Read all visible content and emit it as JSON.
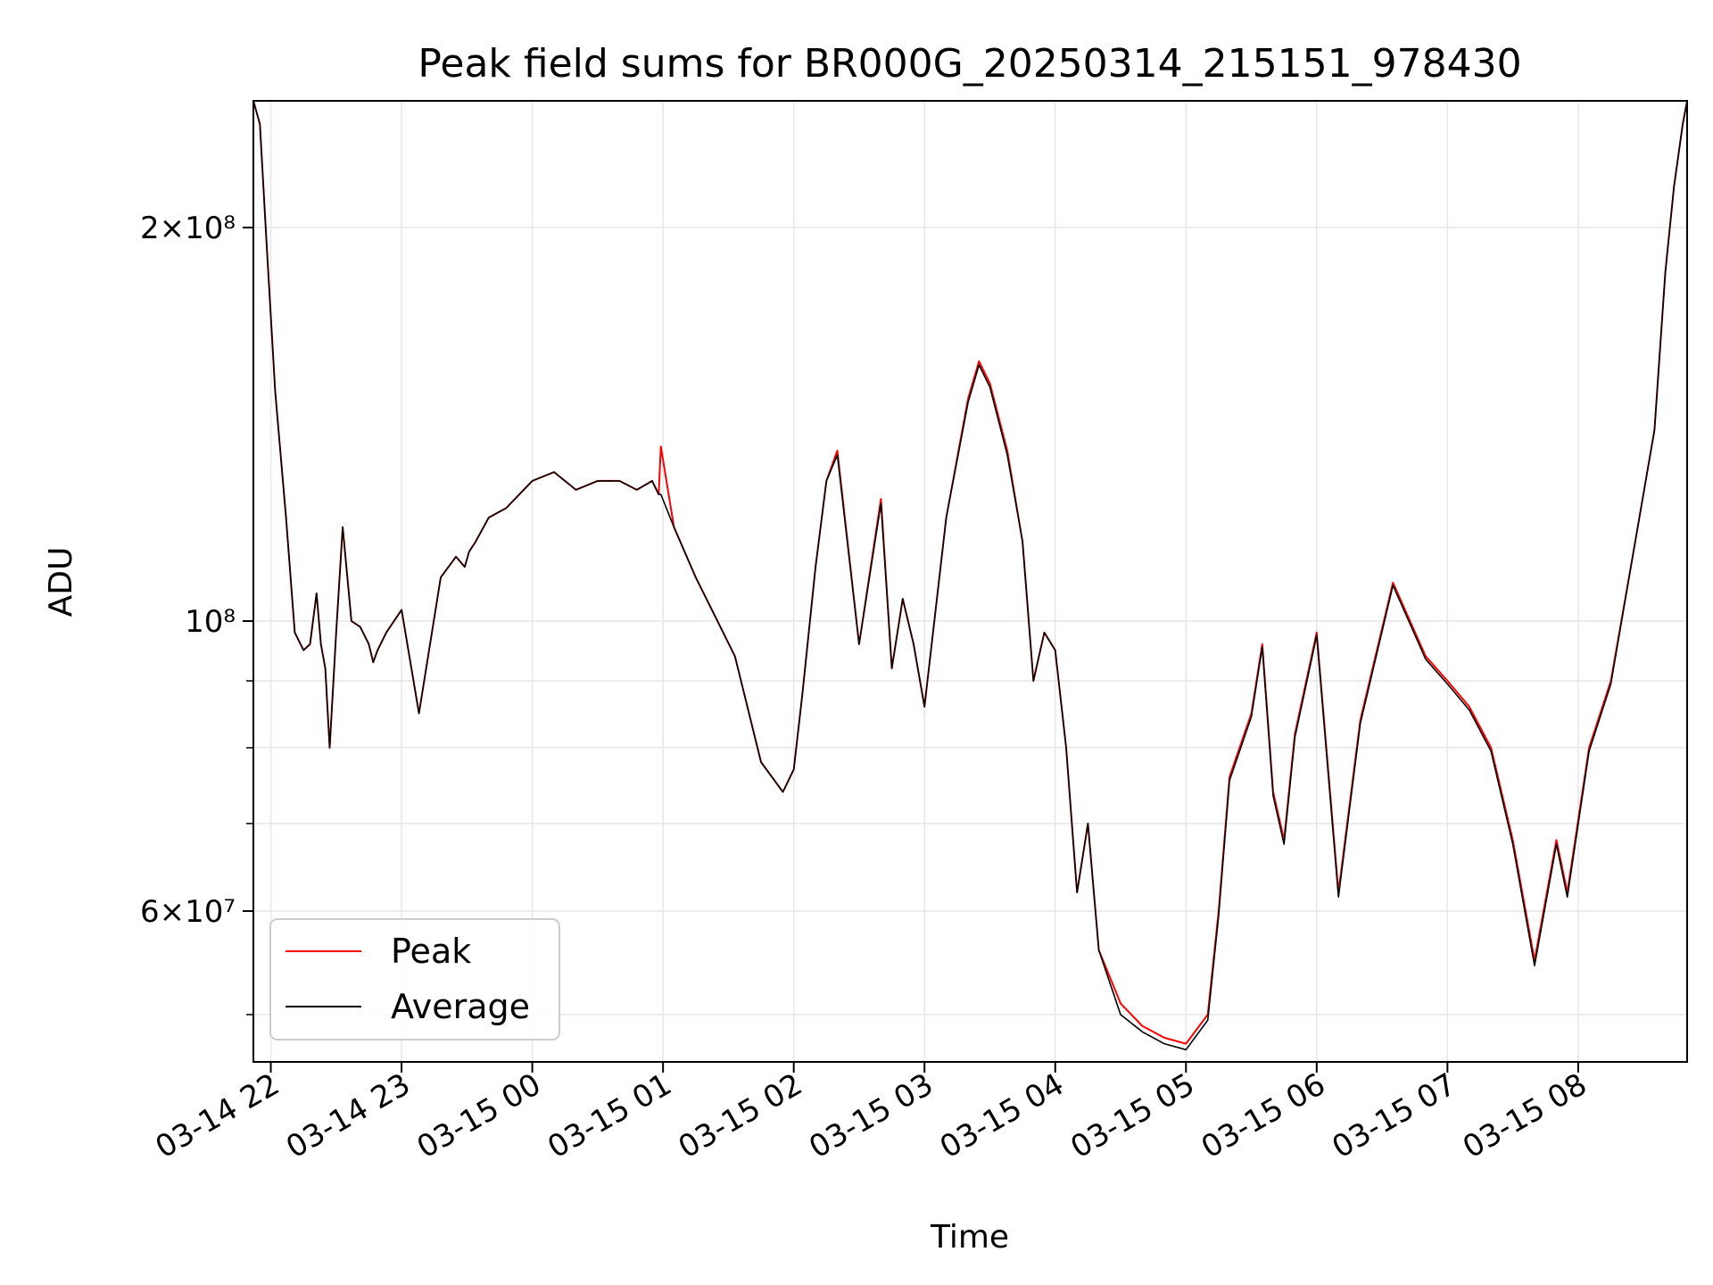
{
  "chart_data": {
    "type": "line",
    "title": "Peak field sums for BR000G_20250314_215151_978430",
    "xlabel": "Time",
    "ylabel": "ADU",
    "y_scale": "log",
    "ylim": [
      46000000,
      250000000
    ],
    "xlim": [
      "2025-03-14T21:52",
      "2025-03-15T08:50"
    ],
    "grid": true,
    "legend_position": "lower-left",
    "x_ticks": [
      "03-14 22",
      "03-14 23",
      "03-15 00",
      "03-15 01",
      "03-15 02",
      "03-15 03",
      "03-15 04",
      "03-15 05",
      "03-15 06",
      "03-15 07",
      "03-15 08"
    ],
    "y_ticks": [
      {
        "value": 200000000,
        "label": "2×10⁸"
      },
      {
        "value": 100000000,
        "label": "10⁸"
      },
      {
        "value": 60000000,
        "label": "6×10⁷"
      }
    ],
    "series": [
      {
        "name": "Peak",
        "color": "#ff0000",
        "x": [
          "2025-03-14T21:52",
          "2025-03-14T21:55",
          "2025-03-14T21:58",
          "2025-03-14T22:02",
          "2025-03-14T22:07",
          "2025-03-14T22:11",
          "2025-03-14T22:15",
          "2025-03-14T22:18",
          "2025-03-14T22:21",
          "2025-03-14T22:23",
          "2025-03-14T22:25",
          "2025-03-14T22:27",
          "2025-03-14T22:30",
          "2025-03-14T22:33",
          "2025-03-14T22:37",
          "2025-03-14T22:41",
          "2025-03-14T22:45",
          "2025-03-14T22:47",
          "2025-03-14T22:49",
          "2025-03-14T22:53",
          "2025-03-14T23:00",
          "2025-03-14T23:08",
          "2025-03-14T23:18",
          "2025-03-14T23:25",
          "2025-03-14T23:29",
          "2025-03-14T23:31",
          "2025-03-14T23:34",
          "2025-03-14T23:40",
          "2025-03-14T23:48",
          "2025-03-15T00:00",
          "2025-03-15T00:10",
          "2025-03-15T00:20",
          "2025-03-15T00:30",
          "2025-03-15T00:40",
          "2025-03-15T00:48",
          "2025-03-15T00:55",
          "2025-03-15T00:58",
          "2025-03-15T00:59",
          "2025-03-15T01:05",
          "2025-03-15T01:15",
          "2025-03-15T01:25",
          "2025-03-15T01:33",
          "2025-03-15T01:38",
          "2025-03-15T01:45",
          "2025-03-15T01:55",
          "2025-03-15T02:00",
          "2025-03-15T02:04",
          "2025-03-15T02:10",
          "2025-03-15T02:15",
          "2025-03-15T02:20",
          "2025-03-15T02:30",
          "2025-03-15T02:40",
          "2025-03-15T02:45",
          "2025-03-15T02:50",
          "2025-03-15T02:55",
          "2025-03-15T03:00",
          "2025-03-15T03:10",
          "2025-03-15T03:20",
          "2025-03-15T03:25",
          "2025-03-15T03:30",
          "2025-03-15T03:38",
          "2025-03-15T03:45",
          "2025-03-15T03:50",
          "2025-03-15T03:55",
          "2025-03-15T04:00",
          "2025-03-15T04:05",
          "2025-03-15T04:10",
          "2025-03-15T04:15",
          "2025-03-15T04:20",
          "2025-03-15T04:30",
          "2025-03-15T04:40",
          "2025-03-15T04:50",
          "2025-03-15T05:00",
          "2025-03-15T05:10",
          "2025-03-15T05:15",
          "2025-03-15T05:20",
          "2025-03-15T05:30",
          "2025-03-15T05:35",
          "2025-03-15T05:40",
          "2025-03-15T05:45",
          "2025-03-15T05:50",
          "2025-03-15T06:00",
          "2025-03-15T06:10",
          "2025-03-15T06:20",
          "2025-03-15T06:35",
          "2025-03-15T06:50",
          "2025-03-15T07:00",
          "2025-03-15T07:10",
          "2025-03-15T07:20",
          "2025-03-15T07:30",
          "2025-03-15T07:40",
          "2025-03-15T07:50",
          "2025-03-15T07:55",
          "2025-03-15T08:05",
          "2025-03-15T08:15",
          "2025-03-15T08:25",
          "2025-03-15T08:35",
          "2025-03-15T08:40",
          "2025-03-15T08:44",
          "2025-03-15T08:48",
          "2025-03-15T08:50"
        ],
        "values": [
          250000000,
          240000000,
          195000000,
          150000000,
          120000000,
          98000000,
          95000000,
          96000000,
          105000000,
          96000000,
          92000000,
          80000000,
          98000000,
          118000000,
          100000000,
          99000000,
          96000000,
          93000000,
          95000000,
          98000000,
          102000000,
          85000000,
          108000000,
          112000000,
          110000000,
          113000000,
          115000000,
          120000000,
          122000000,
          128000000,
          130000000,
          126000000,
          128000000,
          128000000,
          126000000,
          128000000,
          125000000,
          136000000,
          118000000,
          108000000,
          100000000,
          94000000,
          87000000,
          78000000,
          74000000,
          77000000,
          88000000,
          110000000,
          128000000,
          135000000,
          96000000,
          124000000,
          92000000,
          104000000,
          96000000,
          86000000,
          120000000,
          148000000,
          158000000,
          152000000,
          135000000,
          115000000,
          90000000,
          98000000,
          95000000,
          80000000,
          62000000,
          70000000,
          56000000,
          51000000,
          49000000,
          48000000,
          47500000,
          50000000,
          60000000,
          76000000,
          85000000,
          96000000,
          74000000,
          68000000,
          82000000,
          98000000,
          62000000,
          84000000,
          107000000,
          94000000,
          90000000,
          86000000,
          80000000,
          68000000,
          55000000,
          68000000,
          62000000,
          80000000,
          90000000,
          112000000,
          140000000,
          185000000,
          215000000,
          240000000,
          250000000
        ]
      },
      {
        "name": "Average",
        "color": "#000000",
        "x": [
          "2025-03-14T21:52",
          "2025-03-14T21:55",
          "2025-03-14T21:58",
          "2025-03-14T22:02",
          "2025-03-14T22:07",
          "2025-03-14T22:11",
          "2025-03-14T22:15",
          "2025-03-14T22:18",
          "2025-03-14T22:21",
          "2025-03-14T22:23",
          "2025-03-14T22:25",
          "2025-03-14T22:27",
          "2025-03-14T22:30",
          "2025-03-14T22:33",
          "2025-03-14T22:37",
          "2025-03-14T22:41",
          "2025-03-14T22:45",
          "2025-03-14T22:47",
          "2025-03-14T22:49",
          "2025-03-14T22:53",
          "2025-03-14T23:00",
          "2025-03-14T23:08",
          "2025-03-14T23:18",
          "2025-03-14T23:25",
          "2025-03-14T23:29",
          "2025-03-14T23:31",
          "2025-03-14T23:34",
          "2025-03-14T23:40",
          "2025-03-14T23:48",
          "2025-03-15T00:00",
          "2025-03-15T00:10",
          "2025-03-15T00:20",
          "2025-03-15T00:30",
          "2025-03-15T00:40",
          "2025-03-15T00:48",
          "2025-03-15T00:55",
          "2025-03-15T00:58",
          "2025-03-15T00:59",
          "2025-03-15T01:05",
          "2025-03-15T01:15",
          "2025-03-15T01:25",
          "2025-03-15T01:33",
          "2025-03-15T01:38",
          "2025-03-15T01:45",
          "2025-03-15T01:55",
          "2025-03-15T02:00",
          "2025-03-15T02:04",
          "2025-03-15T02:10",
          "2025-03-15T02:15",
          "2025-03-15T02:20",
          "2025-03-15T02:30",
          "2025-03-15T02:40",
          "2025-03-15T02:45",
          "2025-03-15T02:50",
          "2025-03-15T02:55",
          "2025-03-15T03:00",
          "2025-03-15T03:10",
          "2025-03-15T03:20",
          "2025-03-15T03:25",
          "2025-03-15T03:30",
          "2025-03-15T03:38",
          "2025-03-15T03:45",
          "2025-03-15T03:50",
          "2025-03-15T03:55",
          "2025-03-15T04:00",
          "2025-03-15T04:05",
          "2025-03-15T04:10",
          "2025-03-15T04:15",
          "2025-03-15T04:20",
          "2025-03-15T04:30",
          "2025-03-15T04:40",
          "2025-03-15T04:50",
          "2025-03-15T05:00",
          "2025-03-15T05:10",
          "2025-03-15T05:15",
          "2025-03-15T05:20",
          "2025-03-15T05:30",
          "2025-03-15T05:35",
          "2025-03-15T05:40",
          "2025-03-15T05:45",
          "2025-03-15T05:50",
          "2025-03-15T06:00",
          "2025-03-15T06:10",
          "2025-03-15T06:20",
          "2025-03-15T06:35",
          "2025-03-15T06:50",
          "2025-03-15T07:00",
          "2025-03-15T07:10",
          "2025-03-15T07:20",
          "2025-03-15T07:30",
          "2025-03-15T07:40",
          "2025-03-15T07:50",
          "2025-03-15T07:55",
          "2025-03-15T08:05",
          "2025-03-15T08:15",
          "2025-03-15T08:25",
          "2025-03-15T08:35",
          "2025-03-15T08:40",
          "2025-03-15T08:44",
          "2025-03-15T08:48",
          "2025-03-15T08:50"
        ],
        "values": [
          250000000,
          240000000,
          195000000,
          150000000,
          120000000,
          98000000,
          95000000,
          96000000,
          105000000,
          96000000,
          92000000,
          80000000,
          98000000,
          118000000,
          100000000,
          99000000,
          96000000,
          93000000,
          95000000,
          98000000,
          102000000,
          85000000,
          108000000,
          112000000,
          110000000,
          113000000,
          115000000,
          120000000,
          122000000,
          128000000,
          130000000,
          126000000,
          128000000,
          128000000,
          126000000,
          128000000,
          125000000,
          125000000,
          118000000,
          108000000,
          100000000,
          94000000,
          87000000,
          78000000,
          74000000,
          77000000,
          88000000,
          110000000,
          128000000,
          134000000,
          96000000,
          123000000,
          92000000,
          104000000,
          96000000,
          86000000,
          120000000,
          147000000,
          157000000,
          151000000,
          134000000,
          115000000,
          90000000,
          98000000,
          95000000,
          80000000,
          62000000,
          70000000,
          56000000,
          50000000,
          48500000,
          47500000,
          47000000,
          49500000,
          59500000,
          75500000,
          84500000,
          95500000,
          73500000,
          67500000,
          81500000,
          97500000,
          61500000,
          83500000,
          106500000,
          93500000,
          89500000,
          85500000,
          79500000,
          67500000,
          54500000,
          67500000,
          61500000,
          79500000,
          89500000,
          112000000,
          140000000,
          185000000,
          215000000,
          240000000,
          250000000
        ]
      }
    ]
  }
}
